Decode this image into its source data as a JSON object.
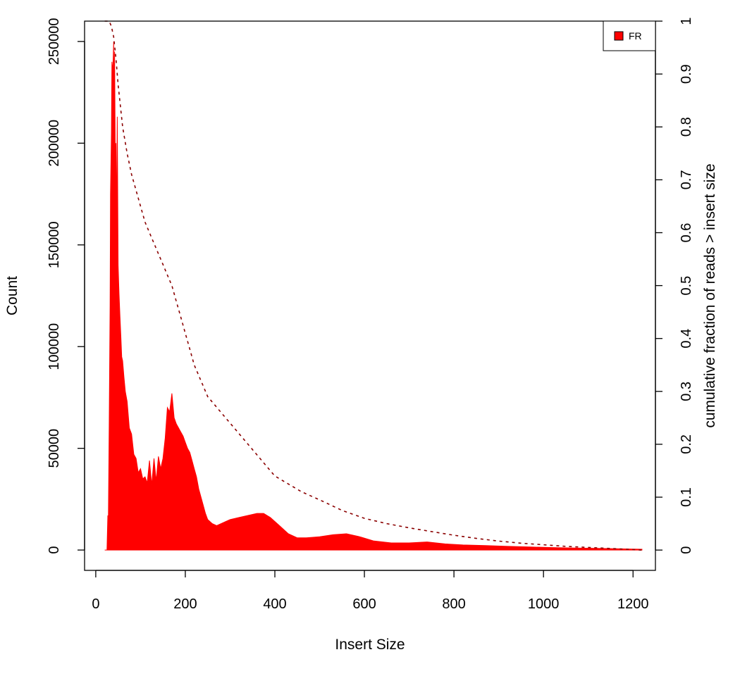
{
  "chart_data": {
    "type": "area",
    "title": "",
    "xlabel": "Insert Size",
    "ylabel": "Count",
    "y2label": "cumulative fraction of reads > insert size",
    "xlim": [
      -25,
      1250
    ],
    "ylim": [
      -10000,
      260000
    ],
    "y2lim": [
      -0.0384,
      1.0
    ],
    "xticks": [
      0,
      200,
      400,
      600,
      800,
      1000,
      1200
    ],
    "yticks": [
      0,
      50000,
      100000,
      150000,
      200000,
      250000
    ],
    "y2ticks": [
      0,
      0.1,
      0.2,
      0.3,
      0.4,
      0.5,
      0.6,
      0.7,
      0.8,
      0.9,
      1
    ],
    "legend": {
      "position": "top-right",
      "entries": [
        {
          "name": "FR",
          "color": "#ff0000"
        }
      ]
    },
    "colors": {
      "histogram": "#ff0000",
      "cumulative": "#8b0000"
    },
    "series": [
      {
        "name": "FR",
        "style": "filled-histogram",
        "x": [
          20,
          25,
          27,
          28,
          30,
          32,
          33,
          35,
          36,
          38,
          40,
          41,
          42,
          44,
          45,
          46,
          48,
          50,
          52,
          54,
          56,
          58,
          60,
          63,
          66,
          70,
          75,
          80,
          85,
          90,
          95,
          100,
          105,
          110,
          115,
          120,
          125,
          130,
          135,
          140,
          145,
          150,
          155,
          160,
          165,
          170,
          175,
          180,
          185,
          190,
          195,
          200,
          205,
          210,
          215,
          220,
          225,
          230,
          235,
          240,
          245,
          250,
          260,
          270,
          280,
          290,
          300,
          320,
          340,
          360,
          375,
          390,
          410,
          430,
          450,
          470,
          500,
          530,
          560,
          590,
          620,
          660,
          700,
          740,
          780,
          820,
          870,
          920,
          970,
          1020,
          1070,
          1120,
          1170,
          1220
        ],
        "values": [
          0,
          0,
          17000,
          12000,
          60000,
          120000,
          175000,
          205000,
          240000,
          235000,
          250000,
          200000,
          245000,
          180000,
          200000,
          155000,
          213000,
          140000,
          126000,
          115000,
          105000,
          95000,
          93000,
          85000,
          78000,
          73000,
          60000,
          57000,
          47000,
          45000,
          38000,
          40000,
          35000,
          36000,
          33000,
          44000,
          32000,
          45000,
          34000,
          46000,
          40000,
          45000,
          55000,
          70000,
          68000,
          77000,
          65000,
          62000,
          60000,
          58000,
          56000,
          53000,
          50000,
          48000,
          44000,
          40000,
          36000,
          30000,
          26000,
          22000,
          18000,
          15000,
          13000,
          12000,
          13000,
          14000,
          15000,
          16000,
          17000,
          18000,
          18000,
          16000,
          12000,
          8000,
          6000,
          6000,
          6500,
          7500,
          8000,
          6500,
          4500,
          3500,
          3500,
          4000,
          3000,
          2500,
          2200,
          1800,
          1500,
          1200,
          1000,
          800,
          600,
          400
        ]
      },
      {
        "name": "cumulative fraction of reads > insert size",
        "axis": "right",
        "style": "dashed-line",
        "x": [
          20,
          25,
          30,
          35,
          40,
          45,
          50,
          55,
          60,
          70,
          80,
          90,
          100,
          110,
          120,
          130,
          140,
          150,
          160,
          170,
          180,
          190,
          200,
          210,
          220,
          230,
          240,
          250,
          260,
          280,
          300,
          320,
          340,
          360,
          380,
          400,
          420,
          440,
          460,
          500,
          550,
          600,
          650,
          700,
          750,
          800,
          850,
          900,
          950,
          1000,
          1050,
          1100,
          1150,
          1200,
          1220
        ],
        "values": [
          1.0,
          1.0,
          1.0,
          0.99,
          0.97,
          0.93,
          0.88,
          0.84,
          0.8,
          0.75,
          0.71,
          0.68,
          0.65,
          0.62,
          0.6,
          0.58,
          0.56,
          0.54,
          0.52,
          0.5,
          0.47,
          0.44,
          0.41,
          0.38,
          0.35,
          0.33,
          0.31,
          0.29,
          0.28,
          0.26,
          0.24,
          0.22,
          0.2,
          0.18,
          0.16,
          0.14,
          0.13,
          0.12,
          0.11,
          0.095,
          0.075,
          0.06,
          0.05,
          0.042,
          0.035,
          0.028,
          0.022,
          0.017,
          0.013,
          0.01,
          0.007,
          0.005,
          0.003,
          0.001,
          0.0
        ]
      }
    ]
  }
}
